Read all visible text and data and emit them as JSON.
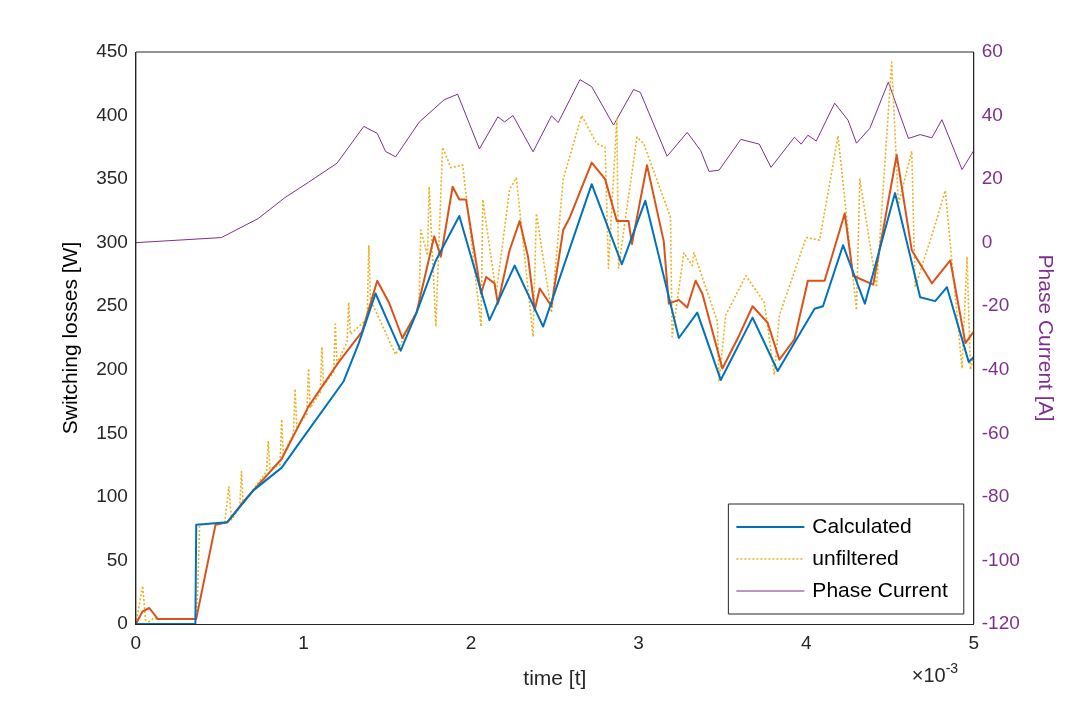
{
  "chart_data": {
    "type": "line",
    "xlabel": "time [t]",
    "ylabel": "Switching losses [W]",
    "y2label": "Phase Current [A]",
    "xlim": [
      0,
      5
    ],
    "xticks": [
      0,
      1,
      2,
      3,
      4,
      5
    ],
    "ylim": [
      0,
      450
    ],
    "yticks": [
      0,
      50,
      100,
      150,
      200,
      250,
      300,
      350,
      400,
      450
    ],
    "y2lim": [
      -120,
      60
    ],
    "y2ticks": [
      -120,
      -100,
      -80,
      -60,
      -40,
      -20,
      0,
      20,
      40,
      60
    ],
    "grid": false,
    "legend": "bottom right",
    "marker": "none",
    "annotations": [
      "×10$^{-3}$"
    ],
    "series": [
      {
        "name": "Calculated",
        "color": "#0072bd",
        "line_style": "solid",
        "x": [
          0,
          0.355,
          0.36,
          0.545,
          0.7,
          0.87,
          1.0,
          1.24,
          1.33,
          1.43,
          1.58,
          1.675,
          1.79,
          1.93,
          2.11,
          2.26,
          2.43,
          2.72,
          2.9,
          3.04,
          3.24,
          3.35,
          3.49,
          3.68,
          3.83,
          4.05,
          4.1,
          4.22,
          4.35,
          4.53,
          4.68,
          4.77,
          4.84,
          4.97,
          5.0
        ],
        "values": [
          0,
          0,
          78,
          80,
          105,
          123,
          147,
          191,
          221,
          260,
          215,
          245,
          286,
          321,
          239,
          282,
          234,
          346,
          283,
          333,
          225,
          245,
          192,
          241,
          199,
          248,
          250,
          298,
          252,
          339,
          257,
          254,
          265,
          206,
          210
        ]
      },
      {
        "color": "#d95319",
        "line_style": "solid",
        "x": [
          0,
          0.04,
          0.08,
          0.13,
          0.36,
          0.475,
          0.545,
          0.64,
          0.7,
          0.87,
          1.03,
          1.21,
          1.35,
          1.44,
          1.51,
          1.59,
          1.675,
          1.78,
          1.82,
          1.89,
          1.93,
          1.97,
          2.06,
          2.09,
          2.14,
          2.16,
          2.23,
          2.29,
          2.34,
          2.38,
          2.41,
          2.48,
          2.55,
          2.59,
          2.72,
          2.8,
          2.87,
          2.94,
          2.96,
          3.05,
          3.15,
          3.18,
          3.24,
          3.29,
          3.34,
          3.38,
          3.5,
          3.6,
          3.68,
          3.77,
          3.84,
          3.93,
          4.01,
          4.11,
          4.23,
          4.28,
          4.4,
          4.54,
          4.63,
          4.75,
          4.86,
          4.95,
          5.0
        ],
        "values": [
          0,
          10,
          12.6,
          4,
          4,
          78,
          80,
          96,
          105,
          130,
          171,
          206,
          230,
          270,
          253,
          225,
          245,
          305,
          289,
          344,
          334,
          334,
          260,
          273,
          268,
          252,
          294,
          317,
          289,
          247,
          264,
          250,
          310,
          320,
          363,
          350,
          317,
          317,
          299,
          361,
          301,
          252,
          255,
          249,
          270,
          260,
          201,
          227,
          250,
          237,
          208,
          224,
          270,
          270,
          323,
          274,
          267,
          369,
          294,
          268,
          286,
          221,
          230
        ]
      },
      {
        "name": "unfiltered",
        "color": "#edb120",
        "line_style": "dotted",
        "x": [
          0,
          0.04,
          0.06,
          0.1,
          0.36,
          0.37,
          0.38,
          0.53,
          0.555,
          0.57,
          0.62,
          0.63,
          0.64,
          0.78,
          0.79,
          0.8,
          0.86,
          0.87,
          0.88,
          0.94,
          0.95,
          0.96,
          1.02,
          1.03,
          1.04,
          1.1,
          1.11,
          1.12,
          1.18,
          1.19,
          1.2,
          1.26,
          1.27,
          1.28,
          1.38,
          1.39,
          1.4,
          1.55,
          1.69,
          1.7,
          1.74,
          1.75,
          1.79,
          1.83,
          1.88,
          1.95,
          2.06,
          2.07,
          2.15,
          2.23,
          2.27,
          2.37,
          2.39,
          2.48,
          2.55,
          2.66,
          2.75,
          2.8,
          2.82,
          2.87,
          2.88,
          2.99,
          3.03,
          3.19,
          3.2,
          3.27,
          3.32,
          3.33,
          3.47,
          3.48,
          3.52,
          3.64,
          3.75,
          3.81,
          3.84,
          4.0,
          4.08,
          4.19,
          4.3,
          4.32,
          4.42,
          4.51,
          4.55,
          4.63,
          4.65,
          4.76,
          4.83,
          4.93,
          4.96,
          4.98,
          5.0
        ],
        "values": [
          0,
          30,
          0,
          4,
          4,
          30,
          78,
          80,
          108,
          82,
          92,
          120,
          95,
          120,
          144,
          122,
          125,
          161,
          133,
          150,
          185,
          155,
          165,
          201,
          170,
          182,
          218,
          188,
          198,
          236,
          205,
          222,
          253,
          228,
          240,
          298,
          255,
          212,
          250,
          310,
          290,
          344,
          234,
          375,
          359,
          361,
          234,
          334,
          260,
          342,
          351,
          226,
          323,
          245,
          350,
          400,
          378,
          375,
          280,
          398,
          280,
          383,
          378,
          320,
          226,
          292,
          282,
          292,
          238,
          191,
          243,
          274,
          253,
          196,
          243,
          304,
          302,
          384,
          247,
          350,
          265,
          442,
          330,
          372,
          265,
          310,
          341,
          201,
          289,
          200,
          210
        ]
      },
      {
        "name": "Phase Current",
        "color": "#7e2f8e",
        "line_style": "solid",
        "axis": "y2",
        "x": [
          0,
          0.51,
          0.73,
          0.89,
          1.03,
          1.2,
          1.36,
          1.44,
          1.49,
          1.55,
          1.69,
          1.84,
          1.92,
          2.05,
          2.16,
          2.2,
          2.25,
          2.37,
          2.48,
          2.52,
          2.65,
          2.72,
          2.85,
          2.97,
          3.01,
          3.17,
          3.29,
          3.37,
          3.42,
          3.48,
          3.61,
          3.72,
          3.79,
          3.93,
          3.97,
          4.01,
          4.06,
          4.17,
          4.25,
          4.3,
          4.38,
          4.49,
          4.61,
          4.68,
          4.75,
          4.81,
          4.93,
          5.0
        ],
        "values": [
          0,
          1.6,
          7.6,
          14.2,
          19,
          25,
          36.6,
          34.4,
          28.7,
          27,
          37.9,
          45,
          46.7,
          29.5,
          39.6,
          38,
          40,
          28.6,
          39.9,
          37.8,
          51.3,
          49.1,
          37,
          48.2,
          47.3,
          27.2,
          34.7,
          29,
          22.4,
          22.8,
          32.5,
          31,
          23.7,
          33.2,
          31,
          33.8,
          32,
          43.9,
          38.5,
          31.3,
          36,
          50.5,
          32.8,
          34,
          33,
          38.7,
          23,
          29
        ]
      }
    ]
  }
}
